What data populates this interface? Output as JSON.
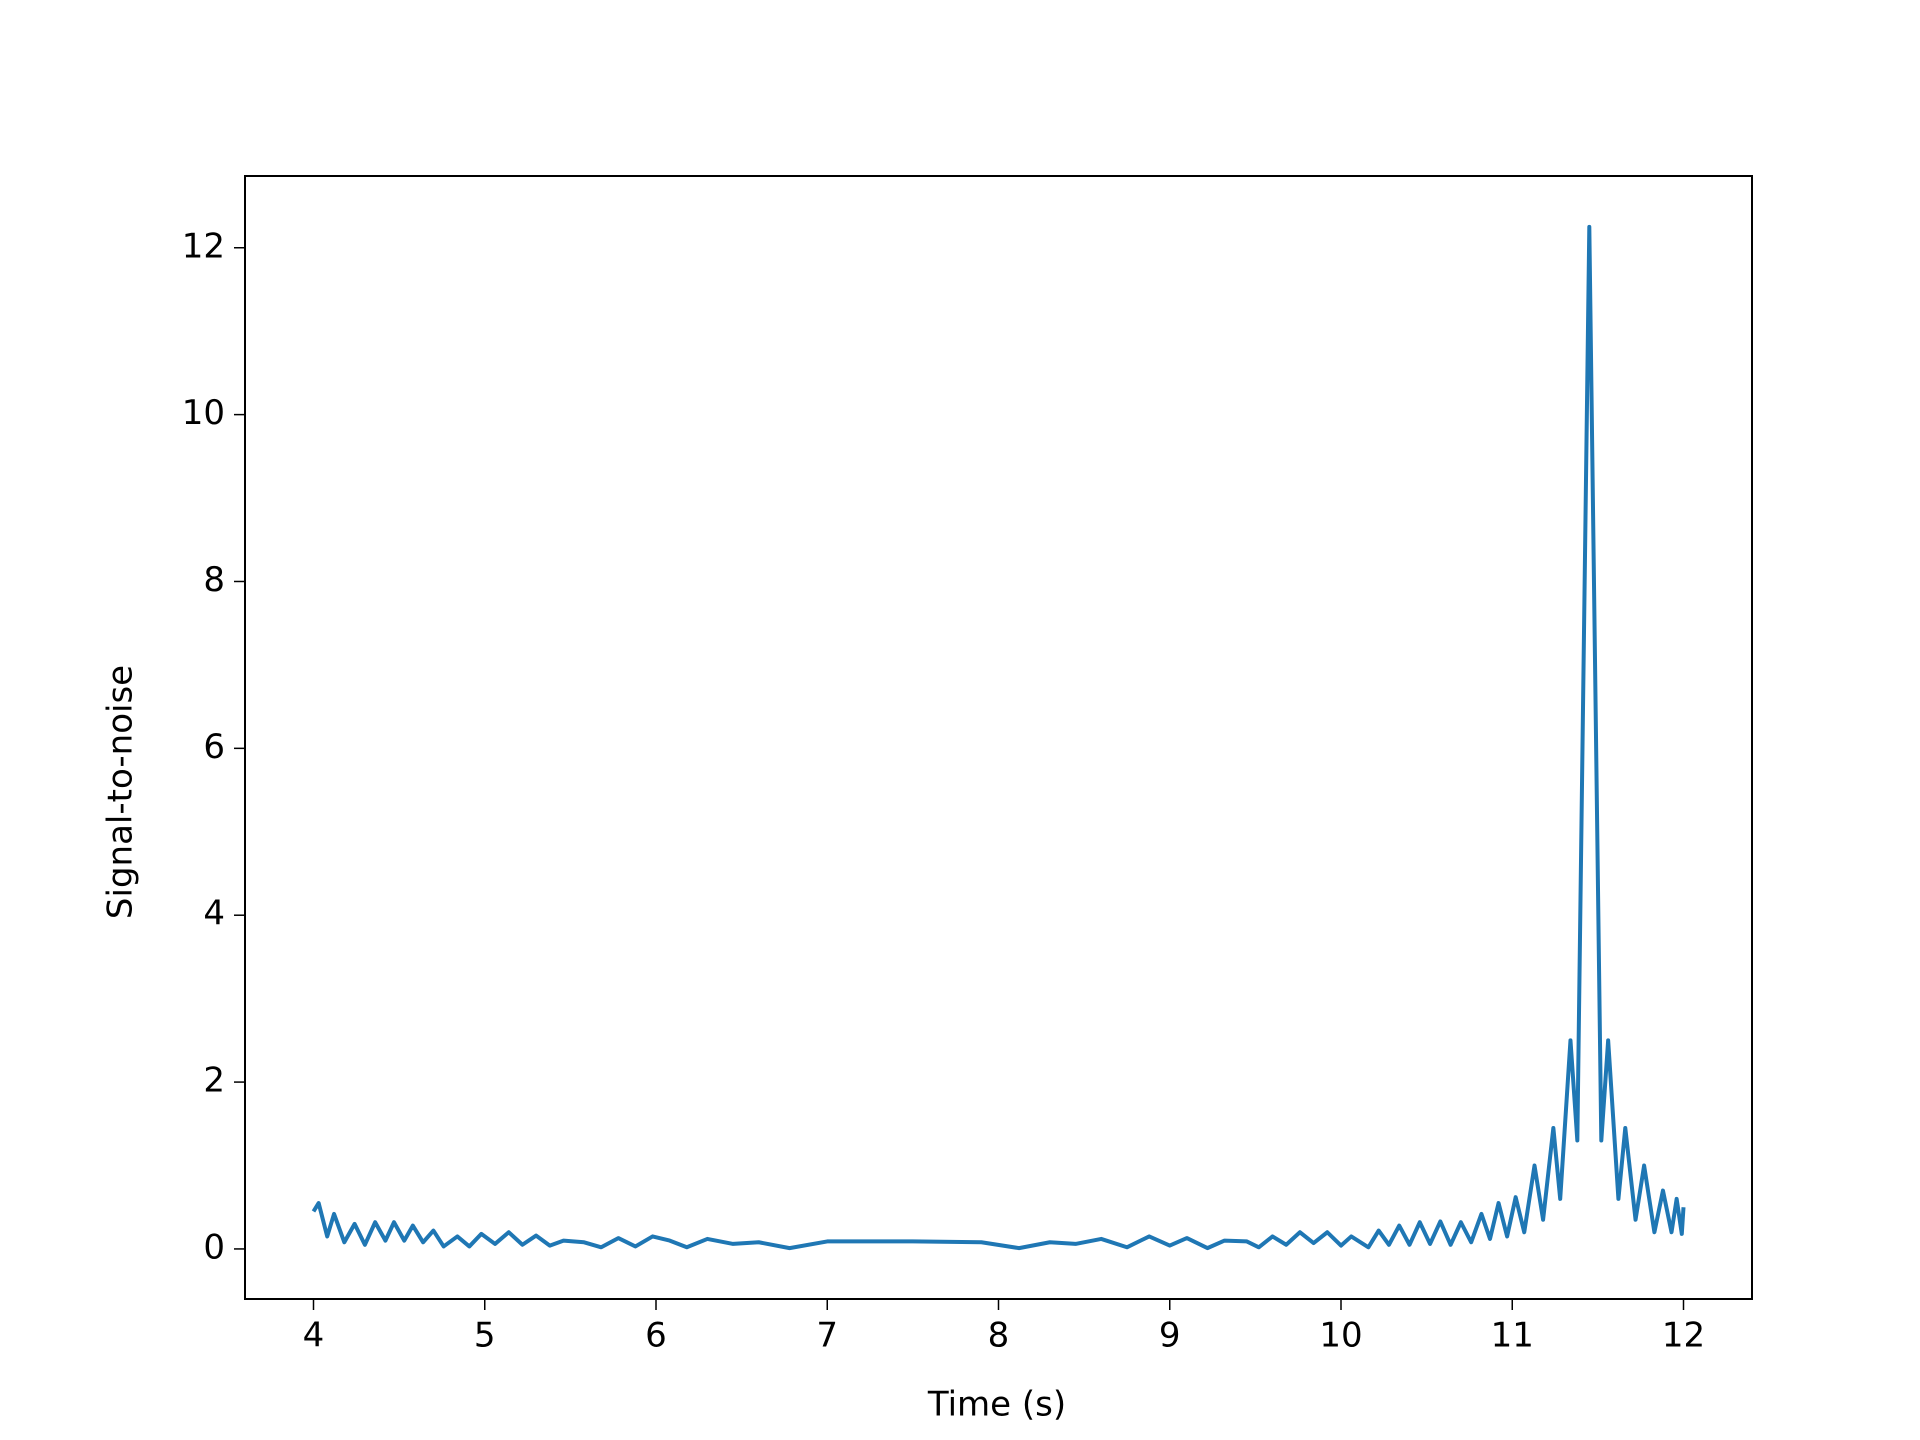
{
  "chart_data": {
    "type": "line",
    "xlabel": "Time (s)",
    "ylabel": "Signal-to-noise",
    "color": "#1f77b4",
    "x": [
      4.0,
      4.03,
      4.08,
      4.12,
      4.18,
      4.24,
      4.3,
      4.36,
      4.42,
      4.47,
      4.53,
      4.58,
      4.64,
      4.7,
      4.76,
      4.84,
      4.91,
      4.98,
      5.06,
      5.14,
      5.22,
      5.3,
      5.38,
      5.46,
      5.58,
      5.68,
      5.78,
      5.88,
      5.98,
      6.08,
      6.18,
      6.3,
      6.45,
      6.6,
      6.78,
      7.0,
      7.5,
      7.9,
      8.12,
      8.3,
      8.45,
      8.6,
      8.75,
      8.88,
      9.0,
      9.1,
      9.22,
      9.32,
      9.45,
      9.52,
      9.6,
      9.68,
      9.76,
      9.84,
      9.92,
      10.0,
      10.06,
      10.16,
      10.22,
      10.28,
      10.34,
      10.4,
      10.46,
      10.52,
      10.58,
      10.64,
      10.7,
      10.76,
      10.82,
      10.87,
      10.92,
      10.97,
      11.02,
      11.07,
      11.13,
      11.18,
      11.24,
      11.28,
      11.34,
      11.38,
      11.45,
      11.52,
      11.56,
      11.62,
      11.66,
      11.72,
      11.77,
      11.83,
      11.88,
      11.93,
      11.96,
      11.99,
      12.0
    ],
    "values": [
      0.45,
      0.55,
      0.15,
      0.42,
      0.08,
      0.3,
      0.05,
      0.32,
      0.1,
      0.32,
      0.1,
      0.28,
      0.08,
      0.22,
      0.03,
      0.15,
      0.03,
      0.18,
      0.06,
      0.2,
      0.05,
      0.16,
      0.04,
      0.1,
      0.08,
      0.02,
      0.13,
      0.03,
      0.15,
      0.1,
      0.02,
      0.12,
      0.06,
      0.08,
      0.01,
      0.09,
      0.09,
      0.08,
      0.01,
      0.08,
      0.06,
      0.12,
      0.02,
      0.15,
      0.04,
      0.13,
      0.01,
      0.1,
      0.09,
      0.02,
      0.15,
      0.05,
      0.2,
      0.07,
      0.2,
      0.04,
      0.15,
      0.02,
      0.22,
      0.05,
      0.28,
      0.05,
      0.32,
      0.06,
      0.33,
      0.05,
      0.32,
      0.08,
      0.42,
      0.12,
      0.55,
      0.15,
      0.62,
      0.2,
      1.0,
      0.35,
      1.45,
      0.6,
      2.5,
      1.3,
      12.25,
      1.3,
      2.5,
      0.6,
      1.45,
      0.35,
      1.0,
      0.2,
      0.7,
      0.2,
      0.6,
      0.18,
      0.5
    ],
    "xlim": [
      3.6,
      12.4
    ],
    "xticks": [
      4,
      5,
      6,
      7,
      8,
      9,
      10,
      11,
      12
    ],
    "ylim": [
      -0.6,
      12.86
    ],
    "yticks": [
      0,
      2,
      4,
      6,
      8,
      10,
      12
    ]
  }
}
